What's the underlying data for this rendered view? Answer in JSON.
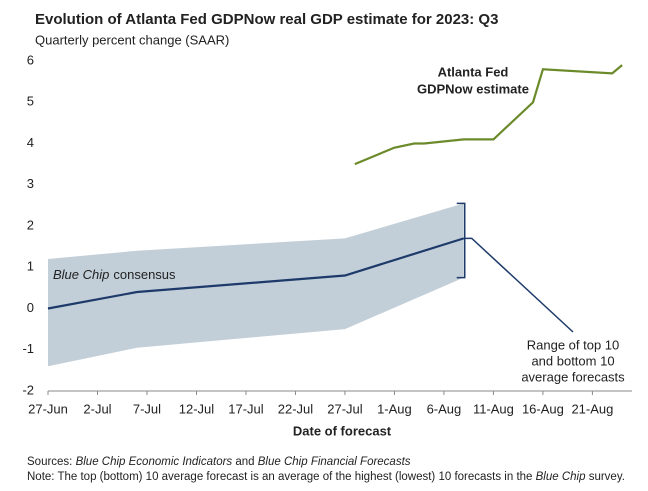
{
  "chart_data": {
    "type": "line",
    "title": "Evolution of Atlanta Fed GDPNow real GDP estimate for 2023: Q3",
    "subtitle": "Quarterly percent change (SAAR)",
    "x_label": "Date of forecast",
    "xlim": [
      "06-27",
      "08-25"
    ],
    "xticks": [
      {
        "value": "06-27",
        "label": "27-Jun"
      },
      {
        "value": "07-02",
        "label": "2-Jul"
      },
      {
        "value": "07-07",
        "label": "7-Jul"
      },
      {
        "value": "07-12",
        "label": "12-Jul"
      },
      {
        "value": "07-17",
        "label": "17-Jul"
      },
      {
        "value": "07-22",
        "label": "22-Jul"
      },
      {
        "value": "07-27",
        "label": "27-Jul"
      },
      {
        "value": "08-01",
        "label": "1-Aug"
      },
      {
        "value": "08-06",
        "label": "6-Aug"
      },
      {
        "value": "08-11",
        "label": "11-Aug"
      },
      {
        "value": "08-16",
        "label": "16-Aug"
      },
      {
        "value": "08-21",
        "label": "21-Aug"
      }
    ],
    "ylim": [
      -2,
      6
    ],
    "yticks": [
      -2,
      -1,
      0,
      1,
      2,
      3,
      4,
      5,
      6
    ],
    "grid": false,
    "band": {
      "color": "#c3cfd8",
      "x": [
        "06-27",
        "07-06",
        "07-27",
        "08-08"
      ],
      "upper": [
        1.2,
        1.4,
        1.7,
        2.55
      ],
      "lower": [
        -1.4,
        -0.95,
        -0.5,
        0.75
      ]
    },
    "series": [
      {
        "name": [
          "Atlanta Fed",
          "GDPNow estimate"
        ],
        "color": "#6b8b2b",
        "x": [
          "07-28",
          "08-01",
          "08-03",
          "08-04",
          "08-08",
          "08-11",
          "08-15",
          "08-16",
          "08-23",
          "08-24"
        ],
        "values": [
          3.5,
          3.9,
          4.0,
          4.0,
          4.1,
          4.1,
          5.0,
          5.8,
          5.7,
          5.9
        ]
      },
      {
        "name": [
          "Blue Chip",
          "consensus"
        ],
        "color": "#1d3a6a",
        "x": [
          "06-27",
          "07-06",
          "07-27",
          "08-08"
        ],
        "values": [
          0.0,
          0.4,
          0.8,
          1.7
        ]
      }
    ],
    "annotations": [
      {
        "text": [
          "Range of top 10",
          "and bottom 10",
          "average forecasts"
        ]
      }
    ],
    "sources": [
      "Sources: ",
      "Blue Chip Economic Indicators",
      " and ",
      "Blue Chip Financial Forecasts"
    ],
    "note": [
      "Note: The top (bottom) 10 average forecast is an average of the highest (lowest) 10 forecasts in the ",
      "Blue Chip",
      " survey."
    ]
  }
}
